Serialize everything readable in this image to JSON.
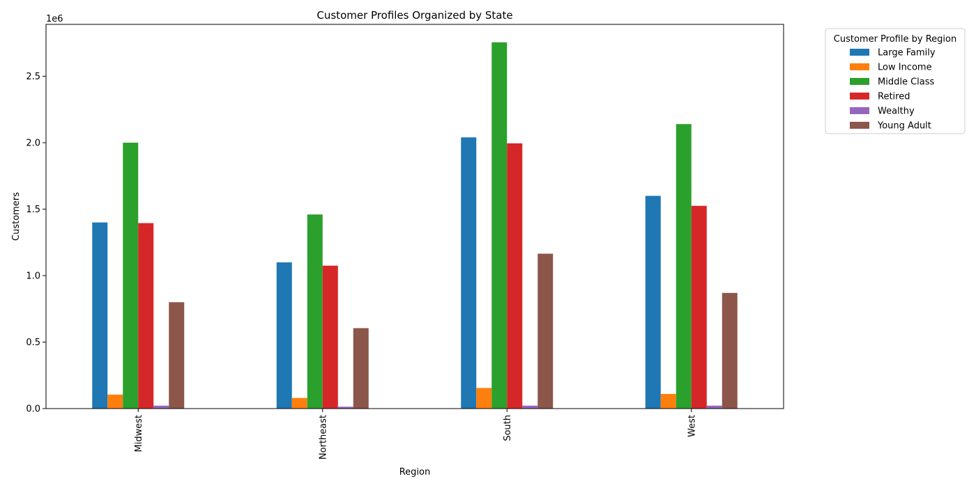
{
  "chart_data": {
    "type": "bar",
    "title": "Customer Profiles Organized by State",
    "xlabel": "Region",
    "ylabel": "Customers",
    "y_offset_label": "1e6",
    "categories": [
      "Midwest",
      "Northeast",
      "South",
      "West"
    ],
    "ylim": [
      0,
      2.89
    ],
    "yticks": [
      0.0,
      0.5,
      1.0,
      1.5,
      2.0,
      2.5
    ],
    "ytick_labels": [
      "0.0",
      "0.5",
      "1.0",
      "1.5",
      "2.0",
      "2.5"
    ],
    "grid": false,
    "legend": {
      "title": "Customer Profile by Region",
      "placement": "outside-top-right"
    },
    "series": [
      {
        "name": "Large Family",
        "color": "#1f77b4",
        "values": [
          1.4,
          1.1,
          2.04,
          1.6
        ]
      },
      {
        "name": "Low Income",
        "color": "#ff7f0e",
        "values": [
          0.105,
          0.08,
          0.155,
          0.11
        ]
      },
      {
        "name": "Middle Class",
        "color": "#2ca02c",
        "values": [
          2.0,
          1.46,
          2.755,
          2.14
        ]
      },
      {
        "name": "Retired",
        "color": "#d62728",
        "values": [
          1.395,
          1.075,
          1.995,
          1.525
        ]
      },
      {
        "name": "Wealthy",
        "color": "#9467bd",
        "values": [
          0.022,
          0.014,
          0.022,
          0.022
        ]
      },
      {
        "name": "Young Adult",
        "color": "#8c564b",
        "values": [
          0.8,
          0.605,
          1.165,
          0.87
        ]
      }
    ]
  }
}
